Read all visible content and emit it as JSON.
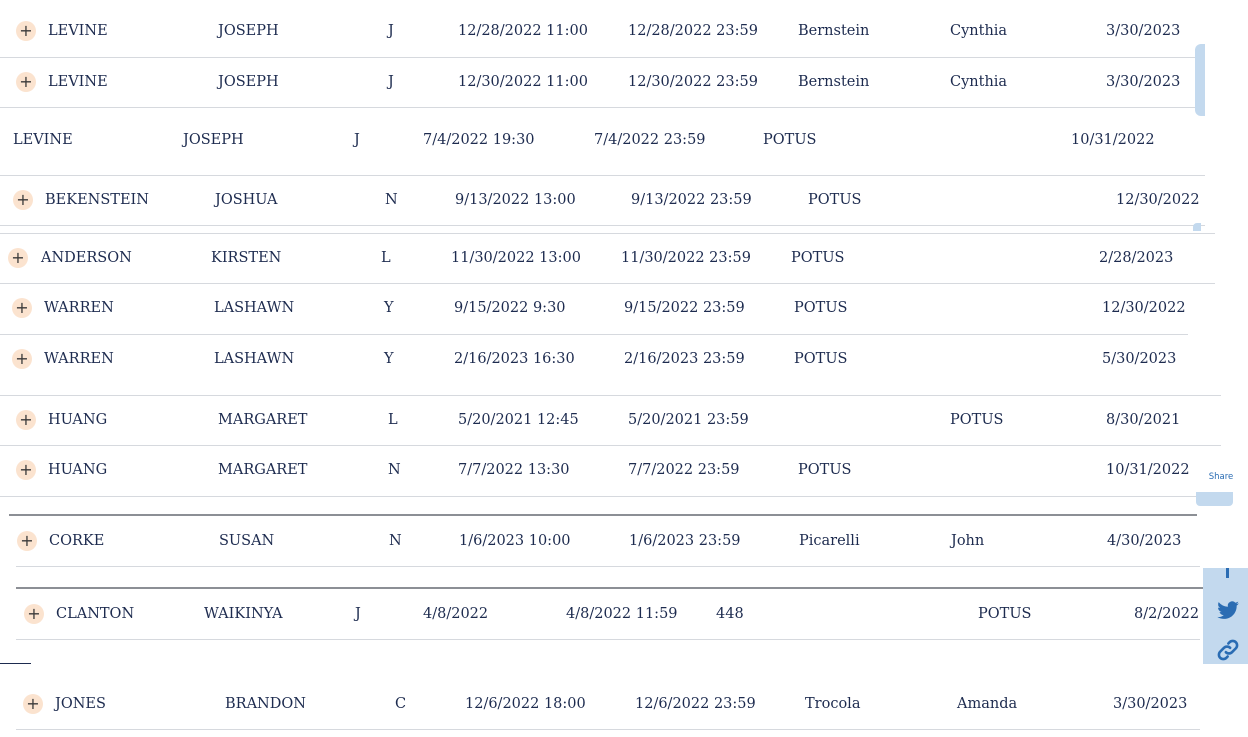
{
  "rows": [
    {
      "expand": "+",
      "last": "LEVINE",
      "first": "JOSEPH",
      "mi": "J",
      "start": "12/28/2022 11:00",
      "end": "12/28/2022 23:59",
      "col7": "Bernstein",
      "col8": "Cynthia",
      "release": "3/30/2023"
    },
    {
      "expand": "+",
      "last": "LEVINE",
      "first": "JOSEPH",
      "mi": "J",
      "start": "12/30/2022 11:00",
      "end": "12/30/2022 23:59",
      "col7": "Bernstein",
      "col8": "Cynthia",
      "release": "3/30/2023"
    },
    {
      "expand": "",
      "last": "LEVINE",
      "first": "JOSEPH",
      "mi": "J",
      "start": "7/4/2022 19:30",
      "end": "7/4/2022 23:59",
      "col7": "POTUS",
      "col8": "",
      "release": "10/31/2022"
    },
    {
      "expand": "+",
      "last": "BEKENSTEIN",
      "first": "JOSHUA",
      "mi": "N",
      "start": "9/13/2022 13:00",
      "end": "9/13/2022 23:59",
      "col7": "POTUS",
      "col8": "",
      "release": "12/30/2022"
    },
    {
      "expand": "+",
      "last": "ANDERSON",
      "first": "KIRSTEN",
      "mi": "L",
      "start": "11/30/2022 13:00",
      "end": "11/30/2022 23:59",
      "col7": "POTUS",
      "col8": "",
      "release": "2/28/2023"
    },
    {
      "expand": "+",
      "last": "WARREN",
      "first": "LASHAWN",
      "mi": "Y",
      "start": "9/15/2022 9:30",
      "end": "9/15/2022 23:59",
      "col7": "POTUS",
      "col8": "",
      "release": "12/30/2022"
    },
    {
      "expand": "+",
      "last": "WARREN",
      "first": "LASHAWN",
      "mi": "Y",
      "start": "2/16/2023 16:30",
      "end": "2/16/2023 23:59",
      "col7": "POTUS",
      "col8": "",
      "release": "5/30/2023"
    },
    {
      "expand": "+",
      "last": "HUANG",
      "first": "MARGARET",
      "mi": "L",
      "start": "5/20/2021 12:45",
      "end": "5/20/2021 23:59",
      "col7": "",
      "col8": "POTUS",
      "release": "8/30/2021"
    },
    {
      "expand": "+",
      "last": "HUANG",
      "first": "MARGARET",
      "mi": "N",
      "start": "7/7/2022 13:30",
      "end": "7/7/2022 23:59",
      "col7": "POTUS",
      "col8": "",
      "release": "10/31/2022"
    },
    {
      "expand": "+",
      "last": "CORKE",
      "first": "SUSAN",
      "mi": "N",
      "start": "1/6/2023 10:00",
      "end": "1/6/2023 23:59",
      "col7": "Picarelli",
      "col8": "John",
      "release": "4/30/2023"
    },
    {
      "expand": "+",
      "last": "CLANTON",
      "first": "WAIKINYA",
      "mi": "J",
      "start": "4/8/2022",
      "end": "4/8/2022 11:59",
      "col7": "448",
      "col8": "POTUS",
      "release": "8/2/2022"
    },
    {
      "expand": "+",
      "last": "JONES",
      "first": "BRANDON",
      "mi": "C",
      "start": "12/6/2022 18:00",
      "end": "12/6/2022 23:59",
      "col7": "Trocola",
      "col8": "Amanda",
      "release": "3/30/2023"
    }
  ],
  "share": {
    "label": "Share"
  },
  "icons": {
    "facebook": "facebook-icon",
    "twitter": "twitter-icon",
    "link": "link-icon"
  },
  "colors": {
    "text": "#1d2b4f",
    "expand_bg": "#fbe3cf",
    "share_rail": "#c3d9ee",
    "share_icon": "#2a6cb3"
  }
}
